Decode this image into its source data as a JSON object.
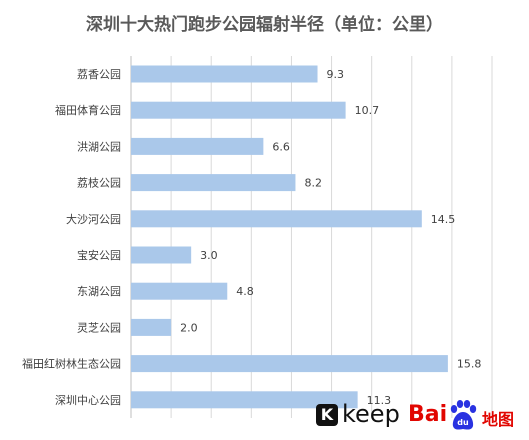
{
  "chart_data": {
    "type": "bar",
    "orientation": "horizontal",
    "title": "深圳十大热门跑步公园辐射半径（单位：公里）",
    "categories": [
      "荔香公园",
      "福田体育公园",
      "洪湖公园",
      "荔枝公园",
      "大沙河公园",
      "宝安公园",
      "东湖公园",
      "灵芝公园",
      "福田红树林生态公园",
      "深圳中心公园"
    ],
    "values": [
      9.3,
      10.7,
      6.6,
      8.2,
      14.5,
      3.0,
      4.8,
      2.0,
      15.8,
      11.3
    ],
    "value_labels": [
      "9.3",
      "10.7",
      "6.6",
      "8.2",
      "14.5",
      "3.0",
      "4.8",
      "2.0",
      "15.8",
      "11.3"
    ],
    "xlim": [
      0,
      18
    ],
    "grid": true,
    "bar_color": "#aac8ea"
  },
  "logos": {
    "keep": {
      "mark": "K",
      "word": "keep"
    },
    "baidu": {
      "prefix": "Bai",
      "paw_text": "du",
      "suffix": "地图"
    }
  }
}
